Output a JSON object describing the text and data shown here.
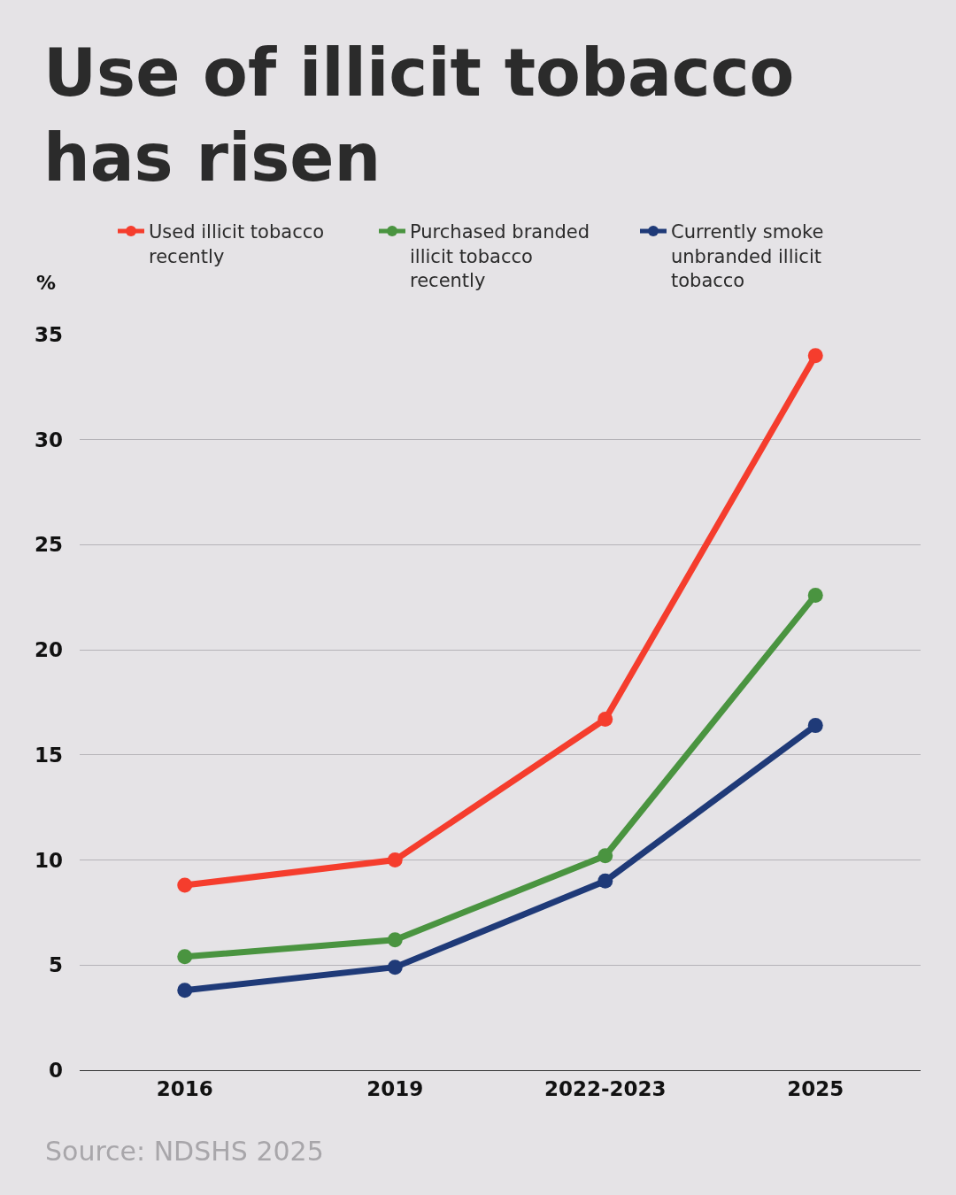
{
  "chart_data": {
    "type": "line",
    "title": "Use of illicit tobacco has risen",
    "ylabel": "%",
    "categories": [
      "2016",
      "2019",
      "2022-2023",
      "2025"
    ],
    "series": [
      {
        "name": "Used illicit tobacco recently",
        "color": "#f53d2d",
        "values": [
          8.8,
          10.0,
          16.7,
          34.0
        ]
      },
      {
        "name": "Purchased branded illicit tobacco recently",
        "color": "#4a9440",
        "values": [
          5.4,
          6.2,
          10.2,
          22.6
        ]
      },
      {
        "name": "Currently smoke unbranded illicit tobacco",
        "color": "#1f3a78",
        "values": [
          3.8,
          4.9,
          9.0,
          16.4
        ]
      }
    ],
    "ylim": [
      0,
      35
    ],
    "yticks": [
      0,
      5,
      10,
      15,
      20,
      25,
      30,
      35
    ],
    "grid": "y",
    "legend": "top",
    "marker": "circle",
    "line_style": "solid",
    "annotations": [
      "Source: NDSHS 2025"
    ]
  }
}
